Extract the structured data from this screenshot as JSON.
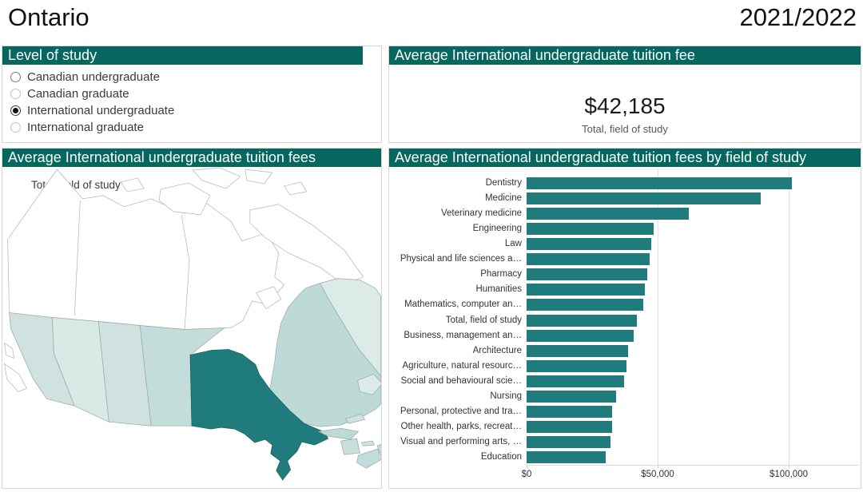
{
  "page": {
    "title": "Ontario",
    "year": "2021/2022"
  },
  "level_of_study": {
    "header": "Level of study",
    "options": [
      {
        "label": "Canadian undergraduate",
        "selected": false
      },
      {
        "label": "Canadian graduate",
        "selected": false
      },
      {
        "label": "International undergraduate",
        "selected": true
      },
      {
        "label": "International graduate",
        "selected": false
      }
    ]
  },
  "summary": {
    "header": "Average International undergraduate tuition fee",
    "value": "$42,185",
    "caption": "Total, field of study"
  },
  "map": {
    "header": "Average International undergraduate tuition fees",
    "subtitle": "Total, field of study",
    "highlight_region": "Ontario",
    "region_colors": {
      "british-columbia": "#cfe2df",
      "alberta": "#d9e9e6",
      "saskatchewan": "#cfe2df",
      "manitoba": "#c5ddda",
      "ontario": "#1f7b7c",
      "quebec": "#bedad7",
      "gaspe-quebec": "#bedad7",
      "anticosti-island": "#cfe2df",
      "newfoundland-and-labrador": "#dcebe8",
      "newfoundland-island": "#dcebe8",
      "new-brunswick": "#c9dfdc",
      "nova-scotia": "#c2dcd9",
      "cape-breton": "#c2dcd9",
      "prince-edward-island": "#d2e4e1"
    }
  },
  "chart_data": {
    "type": "bar",
    "orientation": "horizontal",
    "title": "Average International undergraduate tuition fees by field of study",
    "bar_color": "#1f7b7c",
    "grid": true,
    "legend": false,
    "xlim": [
      0,
      126500
    ],
    "tick_values": [
      0,
      50000,
      100000
    ],
    "tick_labels": [
      "$0",
      "$50,000",
      "$100,000"
    ],
    "categories": [
      "Dentistry",
      "Medicine",
      "Veterinary medicine",
      "Engineering",
      "Law",
      "Physical and life sciences a…",
      "Pharmacy",
      "Humanities",
      "Mathematics, computer an…",
      "Total, field of study",
      "Business, management an…",
      "Architecture",
      "Agriculture, natural resourc…",
      "Social and behavioural scie…",
      "Nursing",
      "Personal, protective and tra…",
      "Other health, parks, recreat…",
      "Visual and performing arts, …",
      "Education"
    ],
    "values": [
      101300,
      89200,
      62000,
      48400,
      47600,
      47100,
      45900,
      45200,
      44400,
      42185,
      40900,
      38600,
      38100,
      37200,
      34200,
      32700,
      32700,
      32000,
      30100
    ]
  }
}
